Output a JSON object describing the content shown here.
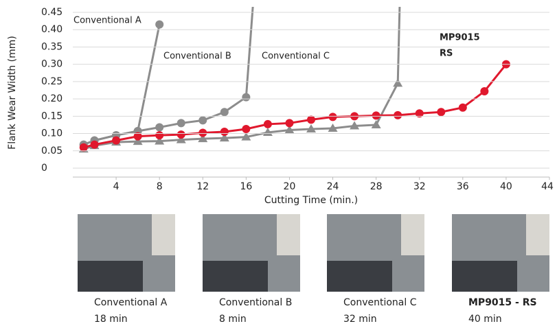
{
  "chart_data": {
    "type": "line",
    "x_label": "Cutting Time (min.)",
    "y_label": "Flank Wear Width (mm)",
    "xlim": [
      0,
      44
    ],
    "xticks": [
      4,
      8,
      12,
      16,
      20,
      24,
      28,
      32,
      36,
      40,
      44
    ],
    "ylim": [
      0,
      0.45
    ],
    "yticks": [
      0,
      {
        "value": 0.05,
        "label": "0.05"
      },
      {
        "value": 0.1,
        "label": "0.10"
      },
      {
        "value": 0.15,
        "label": "0.15"
      },
      {
        "value": 0.2,
        "label": "0.20"
      },
      {
        "value": 0.25,
        "label": "0.25"
      },
      {
        "value": 0.3,
        "label": "0.30"
      },
      {
        "value": 0.35,
        "label": "0.35"
      },
      {
        "value": 0.4,
        "label": "0.40"
      },
      {
        "value": 0.45,
        "label": "0.45"
      }
    ],
    "grid": true,
    "series": [
      {
        "name": "Conventional A",
        "color": "#8c8c8c",
        "marker": "circle",
        "x": [
          1,
          2,
          4,
          6,
          8
        ],
        "values": [
          0.068,
          0.08,
          0.095,
          0.107,
          0.415
        ]
      },
      {
        "name": "Conventional B",
        "color": "#8c8c8c",
        "marker": "circle",
        "x": [
          1,
          2,
          4,
          6,
          8,
          10,
          12,
          14,
          16,
          16.7
        ],
        "values": [
          0.068,
          0.08,
          0.095,
          0.107,
          0.118,
          0.13,
          0.138,
          0.162,
          0.205,
          0.5
        ]
      },
      {
        "name": "Conventional C",
        "color": "#8c8c8c",
        "marker": "triangle",
        "x": [
          1,
          2,
          4,
          6,
          8,
          10,
          12,
          14,
          16,
          18,
          20,
          22,
          24,
          26,
          28,
          30,
          30.2
        ],
        "values": [
          0.055,
          0.065,
          0.075,
          0.077,
          0.078,
          0.082,
          0.085,
          0.087,
          0.09,
          0.103,
          0.11,
          0.113,
          0.115,
          0.122,
          0.125,
          0.245,
          0.5
        ]
      },
      {
        "color": "#e0182d",
        "marker": "circle",
        "x": [
          1,
          2,
          4,
          6,
          8,
          10,
          12,
          14,
          16,
          18,
          20,
          22,
          24,
          26,
          28,
          30,
          32,
          34,
          36,
          38,
          40
        ],
        "values": [
          0.06,
          0.068,
          0.08,
          0.092,
          0.095,
          0.097,
          0.102,
          0.105,
          0.113,
          0.127,
          0.13,
          0.14,
          0.148,
          0.15,
          0.152,
          0.153,
          0.158,
          0.162,
          0.175,
          0.222,
          0.3
        ]
      }
    ],
    "annotations": [
      "MP9015",
      "RS"
    ]
  },
  "photos": [
    {
      "caption": "Conventional A",
      "time": "18 min"
    },
    {
      "caption": "Conventional B",
      "time": "8 min"
    },
    {
      "caption": "Conventional C",
      "time": "32 min"
    },
    {
      "caption": "MP9015 - RS",
      "time": "40 min"
    }
  ]
}
